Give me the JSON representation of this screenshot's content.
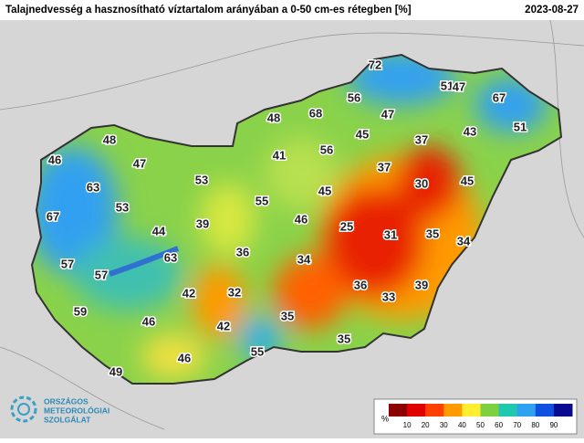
{
  "header": {
    "title": "Talajnedvesség a hasznosítható víztartalom arányában a 0-50 cm-es rétegben [%]",
    "date": "2023-08-27"
  },
  "stations": [
    72,
    51,
    47,
    56,
    67,
    68,
    47,
    48,
    51,
    43,
    45,
    37,
    48,
    56,
    41,
    46,
    47,
    37,
    53,
    30,
    45,
    63,
    45,
    55,
    53,
    46,
    67,
    39,
    25,
    44,
    31,
    35,
    34,
    36,
    63,
    34,
    57,
    57,
    36,
    33,
    39,
    42,
    32,
    59,
    46,
    35,
    42,
    35,
    55,
    46,
    49
  ],
  "legend": {
    "unit": "%",
    "ticks": [
      10,
      20,
      30,
      40,
      50,
      60,
      70,
      80,
      90
    ],
    "colors": [
      "#8b0000",
      "#e00000",
      "#ff4000",
      "#ff9a00",
      "#ffee30",
      "#7ed040",
      "#20c8b0",
      "#30a0f0",
      "#1050e0",
      "#0a0a90"
    ]
  },
  "logo": {
    "lines": [
      "ORSZÁGOS",
      "METEOROLÓGIAI",
      "SZOLGÁLAT"
    ]
  }
}
